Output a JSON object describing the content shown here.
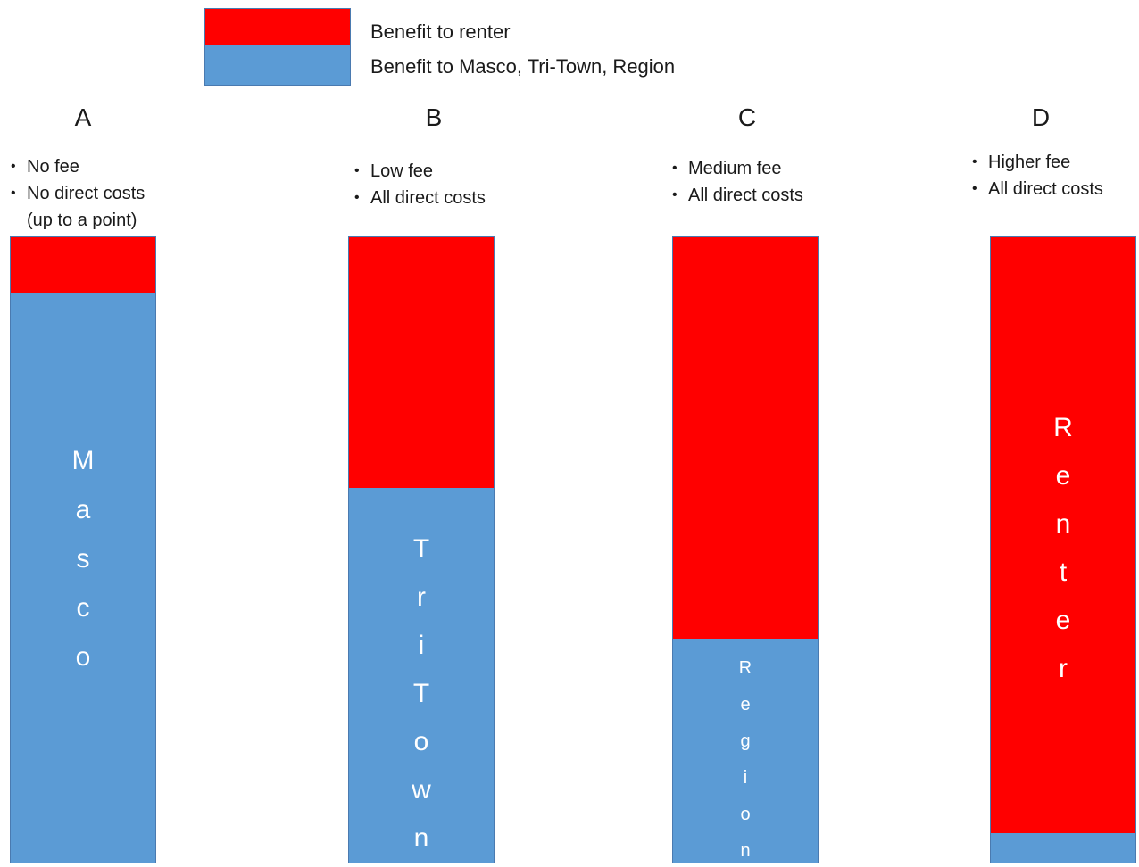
{
  "chart_data": {
    "type": "bar",
    "stacked": true,
    "legend": [
      {
        "label": "Benefit to renter",
        "color": "#ff0000"
      },
      {
        "label": "Benefit to Masco, Tri-Town, Region",
        "color": "#5b9bd5"
      }
    ],
    "categories": [
      "A",
      "B",
      "C",
      "D"
    ],
    "notes": [
      [
        "No fee",
        "No direct costs",
        "(up to a point)"
      ],
      [
        "Low fee",
        "All direct costs"
      ],
      [
        "Medium fee",
        "All direct costs"
      ],
      [
        "Higher fee",
        "All direct costs"
      ]
    ],
    "series": [
      {
        "name": "Benefit to renter",
        "values": [
          9,
          40,
          64,
          95
        ]
      },
      {
        "name": "Benefit to Masco, Tri-Town, Region",
        "values": [
          91,
          60,
          36,
          5
        ]
      }
    ],
    "bar_labels": [
      "Masco",
      "TriTown",
      "Region",
      "Renter"
    ]
  }
}
